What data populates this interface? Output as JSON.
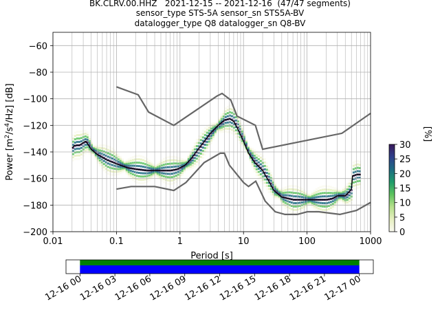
{
  "figure": {
    "title_lines": [
      "BK.CLRV.00.HHZ   2021-12-15 -- 2021-12-16  (47/47 segments)",
      "sensor_type STS-5A sensor_sn STS5A-BV",
      "datalogger_type Q8 datalogger_sn Q8-BV"
    ]
  },
  "colors": {
    "mean_line": "#000000",
    "noise_models": "#666666",
    "grid": "#b0b0b0",
    "coverage_upper": "#008000",
    "coverage_lower": "#0000ff"
  },
  "chart_data": [
    {
      "type": "heatmap",
      "subtype": "probabilistic power spectral density",
      "xlabel": "Period [s]",
      "ylabel": "Power [m²/s⁴/Hz] [dB]",
      "xscale": "log",
      "xlim": [
        0.01,
        1000
      ],
      "ylim": [
        -200,
        -50
      ],
      "x_ticks": [
        {
          "value": 0.01,
          "label": "0.01"
        },
        {
          "value": 0.1,
          "label": "0.1"
        },
        {
          "value": 1,
          "label": "1"
        },
        {
          "value": 10,
          "label": "10"
        },
        {
          "value": 100,
          "label": "100"
        },
        {
          "value": 1000,
          "label": "1000"
        }
      ],
      "y_ticks": [
        {
          "value": -60,
          "label": "−60"
        },
        {
          "value": -80,
          "label": "−80"
        },
        {
          "value": -100,
          "label": "−100"
        },
        {
          "value": -120,
          "label": "−120"
        },
        {
          "value": -140,
          "label": "−140"
        },
        {
          "value": -160,
          "label": "−160"
        },
        {
          "value": -180,
          "label": "−180"
        },
        {
          "value": -200,
          "label": "−200"
        }
      ],
      "grid": true,
      "colorbar": {
        "label": "[%]",
        "range": [
          0,
          30
        ],
        "ticks": [
          {
            "value": 0,
            "label": "0"
          },
          {
            "value": 5,
            "label": "5"
          },
          {
            "value": 10,
            "label": "10"
          },
          {
            "value": 15,
            "label": "15"
          },
          {
            "value": 20,
            "label": "20"
          },
          {
            "value": 25,
            "label": "25"
          },
          {
            "value": 30,
            "label": "30"
          }
        ],
        "colors": [
          "#fafaf0",
          "#e6efc0",
          "#b5e08c",
          "#5cc25e",
          "#1f9b6b",
          "#1d6b82",
          "#2f3f8c",
          "#3a1a5a"
        ]
      },
      "series": [
        {
          "role": "mean",
          "x": [
            0.02,
            0.022,
            0.026,
            0.03,
            0.033,
            0.04,
            0.05,
            0.07,
            0.1,
            0.15,
            0.2,
            0.3,
            0.5,
            0.7,
            0.9,
            1.2,
            1.5,
            2,
            2.5,
            3,
            4,
            5,
            6,
            7,
            8,
            10,
            12,
            15,
            20,
            25,
            30,
            40,
            60,
            80,
            100,
            150,
            200,
            250,
            300,
            400,
            500,
            520,
            600,
            700
          ],
          "y": [
            -137,
            -135,
            -135,
            -133,
            -132,
            -138,
            -142,
            -146,
            -149,
            -152,
            -153,
            -154,
            -154,
            -154,
            -153,
            -150,
            -145,
            -137,
            -131,
            -126,
            -120,
            -116,
            -115,
            -117,
            -122,
            -132,
            -141,
            -148,
            -154,
            -162,
            -169,
            -174,
            -176,
            -176,
            -176,
            -176,
            -176,
            -175,
            -173,
            -173,
            -168,
            -158,
            -157,
            -157
          ]
        },
        {
          "role": "high noise model",
          "x": [
            0.1,
            0.22,
            0.32,
            0.8,
            3.8,
            4.6,
            6.3,
            7.9,
            15.4,
            20,
            354,
            1000
          ],
          "y": [
            -91,
            -97,
            -110,
            -120,
            -98,
            -96,
            -101,
            -113,
            -120,
            -138,
            -126,
            -111
          ]
        },
        {
          "role": "low noise model",
          "x": [
            0.1,
            0.17,
            0.4,
            0.8,
            1.24,
            2.4,
            4.3,
            5,
            6,
            10,
            12,
            15.6,
            21.9,
            31.6,
            45,
            70,
            101,
            154,
            328,
            600,
            1000
          ],
          "y": [
            -168,
            -166,
            -166,
            -169,
            -163,
            -148,
            -141,
            -141,
            -150,
            -163,
            -166,
            -162,
            -177,
            -185,
            -187,
            -187,
            -185,
            -185,
            -187,
            -184,
            -178
          ]
        }
      ]
    },
    {
      "type": "bar",
      "subtype": "data coverage timeline",
      "x_ticks": [
        "12-16 00",
        "12-16 03",
        "12-16 06",
        "12-16 09",
        "12-16 12",
        "12-16 15",
        "12-16 18",
        "12-16 21",
        "12-17 00"
      ],
      "xlim_hours": [
        -1.2,
        25.2
      ],
      "series": [
        {
          "role": "coverage (upper)",
          "color": "#008000",
          "start_hour": 0,
          "end_hour": 24
        },
        {
          "role": "coverage (lower)",
          "color": "#0000ff",
          "start_hour": 0,
          "end_hour": 24
        }
      ]
    }
  ]
}
